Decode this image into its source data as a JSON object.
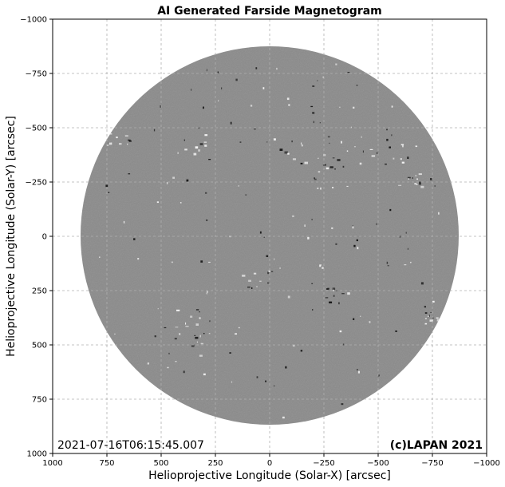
{
  "title": "AI Generated Farside Magnetogram",
  "x_axis": {
    "label": "Helioprojective Longitude (Solar-X) [arcsec]",
    "ticks": [
      "1000",
      "750",
      "500",
      "250",
      "0",
      "−250",
      "−500",
      "−750",
      "−1000"
    ]
  },
  "y_axis": {
    "label": "Helioprojective Longitude (Solar-Y) [arcsec]",
    "ticks": [
      "−1000",
      "−750",
      "−500",
      "−250",
      "0",
      "250",
      "500",
      "750",
      "1000"
    ]
  },
  "timestamp": "2021-07-16T06:15:45.007",
  "credit": "(c)LAPAN 2021",
  "image": {
    "subject": "solar disk magnetogram",
    "disk_color": "#8a8a8a",
    "background_color": "#ffffff",
    "grid": true
  }
}
